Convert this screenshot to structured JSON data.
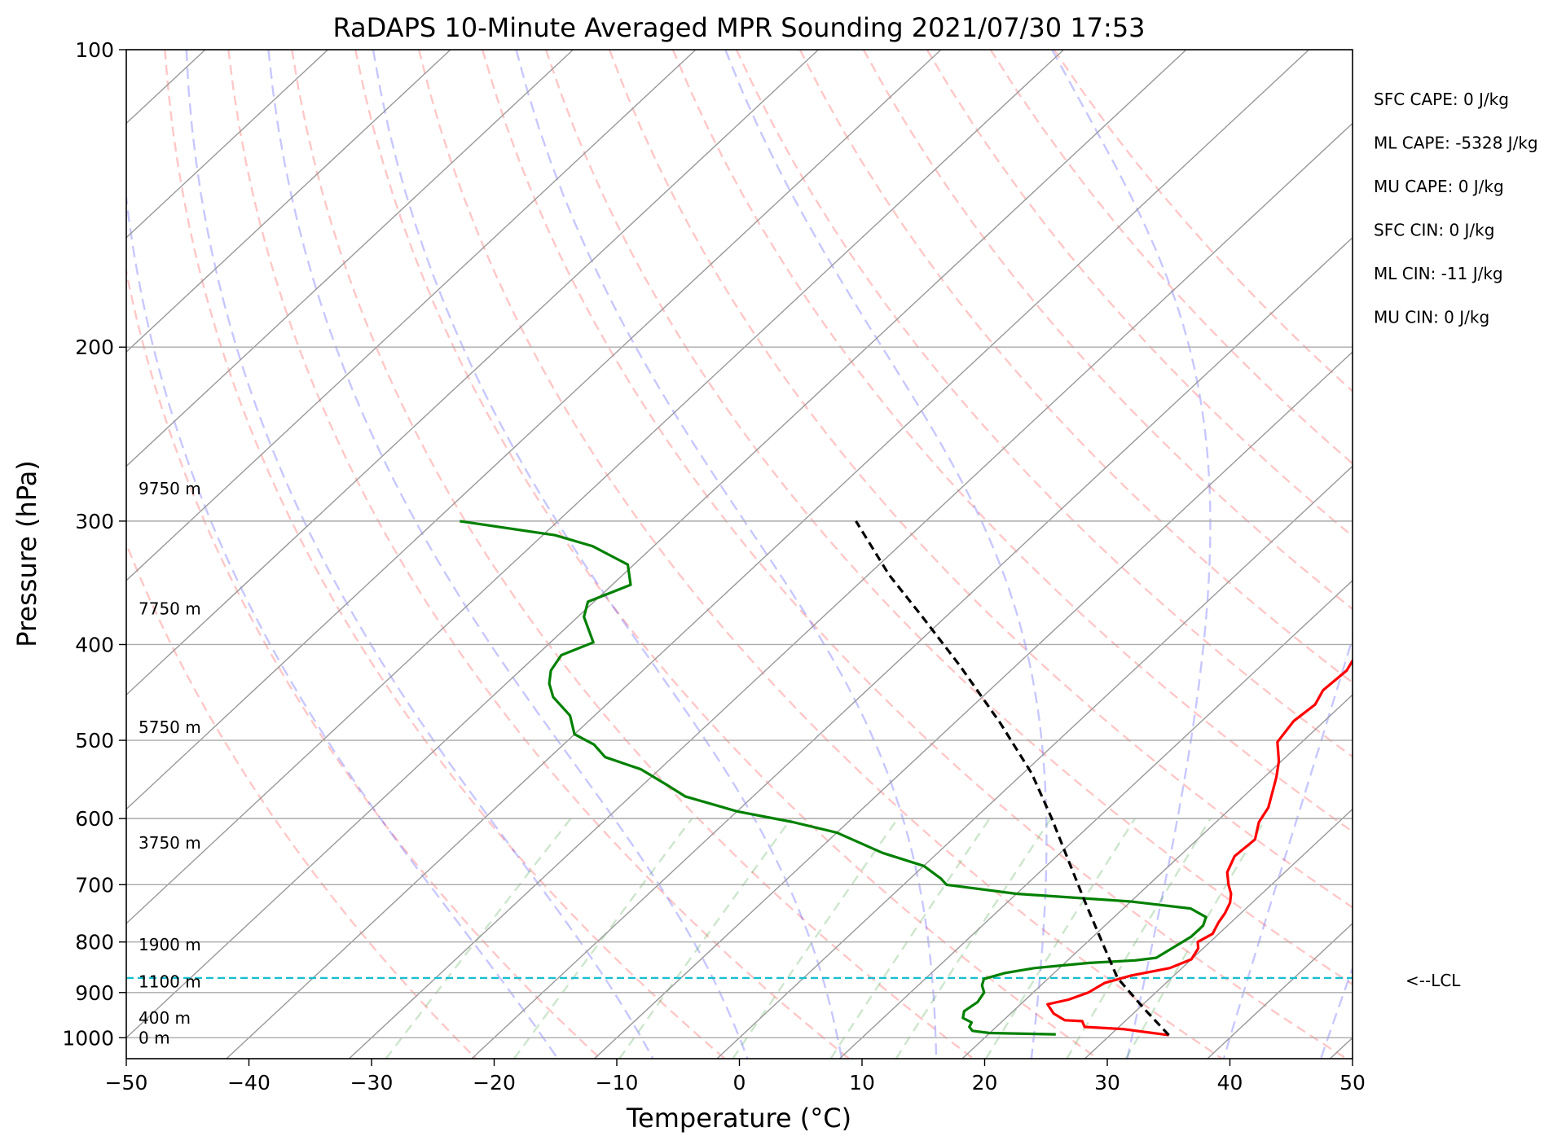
{
  "chart_data": {
    "type": "skew-t",
    "title": "RaDAPS 10-Minute Averaged MPR Sounding 2021/07/30 17:53",
    "xlabel": "Temperature (°C)",
    "ylabel": "Pressure (hPa)",
    "xlim": [
      -50,
      50
    ],
    "ylim": [
      1050,
      100
    ],
    "y_scale": "log",
    "x_ticks": [
      "−50",
      "−40",
      "−30",
      "−20",
      "−10",
      "0",
      "10",
      "20",
      "30",
      "40",
      "50"
    ],
    "x_tick_values": [
      -50,
      -40,
      -30,
      -20,
      -10,
      0,
      10,
      20,
      30,
      40,
      50
    ],
    "y_ticks": [
      "100",
      "200",
      "300",
      "400",
      "500",
      "600",
      "700",
      "800",
      "900",
      "1000"
    ],
    "y_tick_values": [
      100,
      200,
      300,
      400,
      500,
      600,
      700,
      800,
      900,
      1000
    ],
    "grid": true,
    "series": [
      {
        "role": "temperature",
        "color": "#ff0000",
        "points": [
          [
            34.8,
            994
          ],
          [
            30.5,
            980
          ],
          [
            27.2,
            975
          ],
          [
            26.5,
            962
          ],
          [
            25.0,
            960
          ],
          [
            23.5,
            945
          ],
          [
            22.2,
            925
          ],
          [
            23.5,
            915
          ],
          [
            24.5,
            900
          ],
          [
            25.0,
            880
          ],
          [
            26.5,
            865
          ],
          [
            29.0,
            850
          ],
          [
            30.0,
            833
          ],
          [
            29.6,
            812
          ],
          [
            29.0,
            800
          ],
          [
            29.5,
            785
          ],
          [
            29.0,
            765
          ],
          [
            28.7,
            748
          ],
          [
            28.2,
            730
          ],
          [
            27.5,
            715
          ],
          [
            26.5,
            700
          ],
          [
            25.3,
            680
          ],
          [
            24.5,
            655
          ],
          [
            24.7,
            630
          ],
          [
            23.5,
            605
          ],
          [
            23.0,
            585
          ],
          [
            21.0,
            545
          ],
          [
            19.8,
            525
          ],
          [
            18.0,
            502
          ],
          [
            17.5,
            478
          ],
          [
            17.8,
            460
          ],
          [
            17.2,
            445
          ],
          [
            17.4,
            425
          ],
          [
            16.8,
            410
          ],
          [
            16.7,
            390
          ],
          [
            15.0,
            375
          ],
          [
            13.8,
            350
          ],
          [
            13.0,
            340
          ],
          [
            12.0,
            310
          ],
          [
            10.5,
            300
          ]
        ]
      },
      {
        "role": "dewpoint",
        "color": "#008000",
        "points": [
          [
            25.5,
            992
          ],
          [
            20.0,
            989
          ],
          [
            18.4,
            984
          ],
          [
            17.8,
            975
          ],
          [
            17.6,
            965
          ],
          [
            16.5,
            955
          ],
          [
            16.0,
            940
          ],
          [
            16.3,
            920
          ],
          [
            16.0,
            900
          ],
          [
            15.2,
            885
          ],
          [
            14.8,
            872
          ],
          [
            16.0,
            860
          ],
          [
            17.0,
            855
          ],
          [
            18.0,
            850
          ],
          [
            20.0,
            845
          ],
          [
            22.0,
            840
          ],
          [
            25.5,
            835
          ],
          [
            27.0,
            830
          ],
          [
            27.5,
            810
          ],
          [
            28.0,
            790
          ],
          [
            28.0,
            770
          ],
          [
            27.5,
            755
          ],
          [
            25.5,
            740
          ],
          [
            20.0,
            728
          ],
          [
            10.0,
            715
          ],
          [
            3.5,
            700
          ],
          [
            2.5,
            690
          ],
          [
            0.0,
            670
          ],
          [
            -4.5,
            650
          ],
          [
            -10.0,
            620
          ],
          [
            -14.5,
            605
          ],
          [
            -20.0,
            590
          ],
          [
            -25.5,
            570
          ],
          [
            -28.0,
            555
          ],
          [
            -31.5,
            535
          ],
          [
            -35.5,
            520
          ],
          [
            -37.5,
            505
          ],
          [
            -40.0,
            493
          ],
          [
            -42.0,
            472
          ],
          [
            -45.0,
            452
          ],
          [
            -46.5,
            438
          ],
          [
            -47.5,
            425
          ],
          [
            -48.0,
            410
          ],
          [
            -46.5,
            398
          ],
          [
            -49.5,
            375
          ],
          [
            -50.5,
            362
          ],
          [
            -48.5,
            348
          ],
          [
            -50.5,
            332
          ],
          [
            -55.0,
            318
          ],
          [
            -59.0,
            310
          ],
          [
            -68.0,
            300
          ]
        ]
      },
      {
        "role": "parcel",
        "color": "#000000",
        "points": [
          [
            34.8,
            994
          ],
          [
            30.5,
            935
          ],
          [
            25.6,
            870
          ],
          [
            21.2,
            800
          ],
          [
            16.4,
            730
          ],
          [
            11.2,
            660
          ],
          [
            6.3,
            600
          ],
          [
            0.7,
            540
          ],
          [
            -6.3,
            480
          ],
          [
            -14.6,
            420
          ],
          [
            -21.9,
            375
          ],
          [
            -28.3,
            340
          ],
          [
            -35.7,
            300
          ]
        ]
      },
      {
        "role": "lcl",
        "color": "#17becf",
        "pressure": 870
      }
    ],
    "background_lines": {
      "dry_adiabats": {
        "color": "#ff0000",
        "theta_K": [
          250,
          260,
          270,
          280,
          290,
          300,
          310,
          320,
          330,
          340,
          350,
          360,
          370,
          380,
          390,
          400,
          410
        ]
      },
      "moist_adiabats": {
        "color": "#0000ff",
        "theta_e_C": [
          -16,
          -8,
          0,
          8,
          16,
          24,
          32,
          40,
          48
        ]
      },
      "mixing_ratio": {
        "color": "#008000",
        "g_per_kg": [
          0.4,
          1,
          2,
          4,
          7,
          10,
          16,
          24,
          32
        ]
      }
    },
    "height_labels": [
      {
        "text": "9750 m",
        "pressure": 278
      },
      {
        "text": "7750 m",
        "pressure": 368
      },
      {
        "text": "5750 m",
        "pressure": 485
      },
      {
        "text": "3750 m",
        "pressure": 635
      },
      {
        "text": "1900 m",
        "pressure": 805
      },
      {
        "text": "1100 m",
        "pressure": 878
      },
      {
        "text": "400 m",
        "pressure": 955
      },
      {
        "text": "0 m",
        "pressure": 1000
      }
    ],
    "annotations": [
      "SFC CAPE: 0 J/kg",
      "ML CAPE: -5328 J/kg",
      "MU CAPE: 0 J/kg",
      "SFC CIN: 0 J/kg",
      "ML CIN: -11 J/kg",
      "MU CIN: 0 J/kg"
    ],
    "lcl_label": "<--LCL"
  }
}
